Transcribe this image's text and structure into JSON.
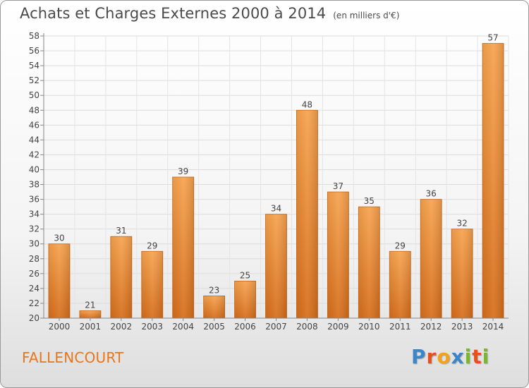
{
  "title": "Achats et Charges Externes 2000 à 2014",
  "unit": "(en milliers d'€)",
  "commune": "FALLENCOURT",
  "logo": {
    "text": "Proxiti"
  },
  "colors": {
    "bar_light": "#f6a04a",
    "bar_dark": "#d9701c",
    "text": "#4a4a4a",
    "commune": "#e8761a"
  },
  "chart_data": {
    "type": "bar",
    "categories": [
      "2000",
      "2001",
      "2002",
      "2003",
      "2004",
      "2005",
      "2006",
      "2007",
      "2008",
      "2009",
      "2010",
      "2011",
      "2012",
      "2013",
      "2014"
    ],
    "values": [
      30,
      21,
      31,
      29,
      39,
      23,
      25,
      34,
      48,
      37,
      35,
      29,
      36,
      32,
      57
    ],
    "ylim": [
      20,
      58
    ],
    "yticks": [
      20,
      22,
      24,
      26,
      28,
      30,
      32,
      34,
      36,
      38,
      40,
      42,
      44,
      46,
      48,
      50,
      52,
      54,
      56,
      58
    ],
    "grid": true,
    "data_labels": true
  }
}
